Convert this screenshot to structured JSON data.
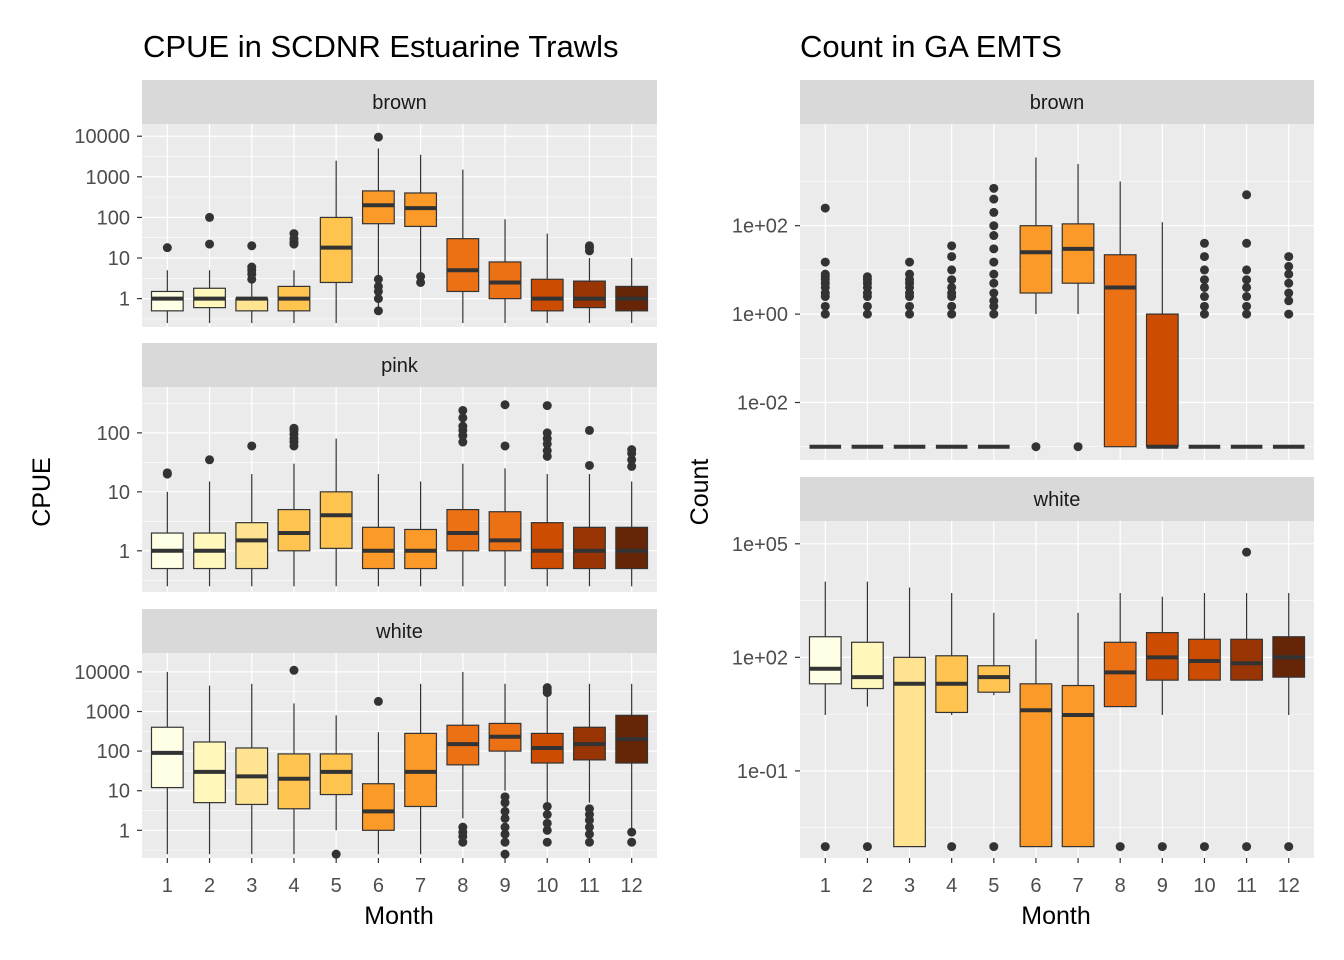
{
  "chart_data": [
    {
      "type": "boxplot",
      "title": "CPUE in SCDNR Estuarine Trawls",
      "xlabel": "Month",
      "ylabel": "CPUE",
      "y_scale": "log10",
      "categories": [
        "1",
        "2",
        "3",
        "4",
        "5",
        "6",
        "7",
        "8",
        "9",
        "10",
        "11",
        "12"
      ],
      "fill_colors": [
        "#FFFFE5",
        "#FFF7BC",
        "#FEE391",
        "#FEC44F",
        "#FEC44F",
        "#FB9A29",
        "#FB9A29",
        "#EC7014",
        "#EC7014",
        "#CC4C02",
        "#993404",
        "#662506"
      ],
      "facets": [
        {
          "label": "brown",
          "ylim": [
            0.2,
            20000
          ],
          "ticks": [
            {
              "v": 1,
              "t": "1"
            },
            {
              "v": 10,
              "t": "10"
            },
            {
              "v": 100,
              "t": "100"
            },
            {
              "v": 1000,
              "t": "1000"
            },
            {
              "v": 10000,
              "t": "10000"
            }
          ],
          "boxes": [
            {
              "min": 0.25,
              "q1": 0.5,
              "med": 1,
              "q3": 1.5,
              "max": 5,
              "out": [
                18
              ]
            },
            {
              "min": 0.25,
              "q1": 0.6,
              "med": 1,
              "q3": 1.8,
              "max": 5,
              "out": [
                22,
                100
              ]
            },
            {
              "min": 0.25,
              "q1": 0.5,
              "med": 1,
              "q3": 1,
              "max": 4,
              "out": [
                3,
                4,
                5,
                6,
                20
              ]
            },
            {
              "min": 0.25,
              "q1": 0.5,
              "med": 1,
              "q3": 2,
              "max": 5,
              "out": [
                22,
                25,
                30,
                40
              ]
            },
            {
              "min": 0.25,
              "q1": 2.5,
              "med": 18,
              "q3": 100,
              "max": 2500,
              "out": []
            },
            {
              "min": 0.5,
              "q1": 70,
              "med": 200,
              "q3": 450,
              "max": 5000,
              "out": [
                0.5,
                1,
                1.5,
                2,
                3,
                9500
              ]
            },
            {
              "min": 2,
              "q1": 60,
              "med": 170,
              "q3": 400,
              "max": 3500,
              "out": [
                2.5,
                3.5
              ]
            },
            {
              "min": 0.25,
              "q1": 1.5,
              "med": 5,
              "q3": 30,
              "max": 1500,
              "out": []
            },
            {
              "min": 0.25,
              "q1": 1,
              "med": 2.5,
              "q3": 8,
              "max": 90,
              "out": []
            },
            {
              "min": 0.25,
              "q1": 0.5,
              "med": 1,
              "q3": 3,
              "max": 40,
              "out": []
            },
            {
              "min": 0.25,
              "q1": 0.6,
              "med": 1,
              "q3": 2.7,
              "max": 10,
              "out": [
                15,
                18,
                20
              ]
            },
            {
              "min": 0.25,
              "q1": 0.5,
              "med": 1,
              "q3": 2,
              "max": 10,
              "out": []
            }
          ]
        },
        {
          "label": "pink",
          "ylim": [
            0.2,
            600
          ],
          "ticks": [
            {
              "v": 1,
              "t": "1"
            },
            {
              "v": 10,
              "t": "10"
            },
            {
              "v": 100,
              "t": "100"
            }
          ],
          "boxes": [
            {
              "min": 0.25,
              "q1": 0.5,
              "med": 1,
              "q3": 2,
              "max": 10,
              "out": [
                20,
                21
              ]
            },
            {
              "min": 0.25,
              "q1": 0.5,
              "med": 1,
              "q3": 2,
              "max": 15,
              "out": [
                35
              ]
            },
            {
              "min": 0.25,
              "q1": 0.5,
              "med": 1.5,
              "q3": 3,
              "max": 20,
              "out": [
                60
              ]
            },
            {
              "min": 0.25,
              "q1": 1,
              "med": 2,
              "q3": 5,
              "max": 30,
              "out": [
                60,
                70,
                80,
                95,
                110,
                120
              ]
            },
            {
              "min": 0.25,
              "q1": 1.1,
              "med": 4,
              "q3": 10,
              "max": 80,
              "out": []
            },
            {
              "min": 0.25,
              "q1": 0.5,
              "med": 1,
              "q3": 2.5,
              "max": 20,
              "out": []
            },
            {
              "min": 0.25,
              "q1": 0.5,
              "med": 1,
              "q3": 2.3,
              "max": 15,
              "out": []
            },
            {
              "min": 0.25,
              "q1": 1,
              "med": 2,
              "q3": 5,
              "max": 30,
              "out": [
                70,
                90,
                110,
                130,
                180,
                240
              ]
            },
            {
              "min": 0.25,
              "q1": 1,
              "med": 1.5,
              "q3": 4.6,
              "max": 25,
              "out": [
                60,
                300
              ]
            },
            {
              "min": 0.25,
              "q1": 0.5,
              "med": 1,
              "q3": 3,
              "max": 20,
              "out": [
                40,
                50,
                65,
                80,
                100,
                290
              ]
            },
            {
              "min": 0.25,
              "q1": 0.5,
              "med": 1,
              "q3": 2.5,
              "max": 20,
              "out": [
                28,
                110
              ]
            },
            {
              "min": 0.25,
              "q1": 0.5,
              "med": 1,
              "q3": 2.5,
              "max": 15,
              "out": [
                27,
                35,
                45,
                52
              ]
            }
          ]
        },
        {
          "label": "white",
          "ylim": [
            0.2,
            30000
          ],
          "ticks": [
            {
              "v": 1,
              "t": "1"
            },
            {
              "v": 10,
              "t": "10"
            },
            {
              "v": 100,
              "t": "100"
            },
            {
              "v": 1000,
              "t": "1000"
            },
            {
              "v": 10000,
              "t": "10000"
            }
          ],
          "boxes": [
            {
              "min": 0.25,
              "q1": 12,
              "med": 90,
              "q3": 400,
              "max": 10000,
              "out": []
            },
            {
              "min": 0.25,
              "q1": 5,
              "med": 30,
              "q3": 170,
              "max": 4500,
              "out": []
            },
            {
              "min": 0.25,
              "q1": 4.5,
              "med": 23,
              "q3": 120,
              "max": 5000,
              "out": []
            },
            {
              "min": 0.25,
              "q1": 3.5,
              "med": 20,
              "q3": 85,
              "max": 1600,
              "out": [
                11000
              ]
            },
            {
              "min": 1,
              "q1": 8,
              "med": 30,
              "q3": 85,
              "max": 800,
              "out": [
                0.25
              ]
            },
            {
              "min": 0.25,
              "q1": 1,
              "med": 3,
              "q3": 15,
              "max": 300,
              "out": [
                1800
              ]
            },
            {
              "min": 0.25,
              "q1": 4,
              "med": 30,
              "q3": 280,
              "max": 5000,
              "out": []
            },
            {
              "min": 2,
              "q1": 45,
              "med": 150,
              "q3": 450,
              "max": 10000,
              "out": [
                0.5,
                0.7,
                0.9,
                1.2
              ]
            },
            {
              "min": 10,
              "q1": 100,
              "med": 230,
              "q3": 500,
              "max": 5000,
              "out": [
                0.25,
                0.5,
                0.8,
                1.2,
                2,
                3,
                5,
                7
              ]
            },
            {
              "min": 5,
              "q1": 50,
              "med": 120,
              "q3": 280,
              "max": 3000,
              "out": [
                0.5,
                1,
                1.5,
                2.5,
                4,
                3000,
                3500,
                4000
              ]
            },
            {
              "min": 5,
              "q1": 60,
              "med": 150,
              "q3": 400,
              "max": 5000,
              "out": [
                0.5,
                0.8,
                1.2,
                1.8,
                2.5,
                3.5
              ]
            },
            {
              "min": 1,
              "q1": 50,
              "med": 200,
              "q3": 800,
              "max": 5000,
              "out": [
                0.5,
                0.9
              ]
            }
          ]
        }
      ]
    },
    {
      "type": "boxplot",
      "title": "Count in GA EMTS",
      "xlabel": "Month",
      "ylabel": "Count",
      "y_scale": "log10",
      "categories": [
        "1",
        "2",
        "3",
        "4",
        "5",
        "6",
        "7",
        "8",
        "9",
        "10",
        "11",
        "12"
      ],
      "fill_colors": [
        "#FFFFE5",
        "#FFF7BC",
        "#FEE391",
        "#FEC44F",
        "#FEC44F",
        "#FB9A29",
        "#FB9A29",
        "#EC7014",
        "#CC4C02",
        "#CC4C02",
        "#993404",
        "#662506"
      ],
      "facets": [
        {
          "label": "brown",
          "ylim": [
            0.0005,
            20000
          ],
          "ticks": [
            {
              "v": 0.01,
              "t": "1e-02"
            },
            {
              "v": 1,
              "t": "1e+00"
            },
            {
              "v": 100,
              "t": "1e+02"
            }
          ],
          "boxes": [
            {
              "min": 0.001,
              "q1": 0.001,
              "med": 0.001,
              "q3": 0.001,
              "max": 0.001,
              "out": [
                1,
                1.5,
                2.5,
                3,
                4,
                5,
                6,
                7,
                8,
                15,
                250
              ]
            },
            {
              "min": 0.001,
              "q1": 0.001,
              "med": 0.001,
              "q3": 0.001,
              "max": 0.001,
              "out": [
                1,
                1.5,
                2.5,
                3,
                4,
                5,
                6,
                7
              ]
            },
            {
              "min": 0.001,
              "q1": 0.001,
              "med": 0.001,
              "q3": 0.001,
              "max": 0.001,
              "out": [
                1,
                1.5,
                2.5,
                3,
                4,
                5,
                6,
                8,
                15
              ]
            },
            {
              "min": 0.001,
              "q1": 0.001,
              "med": 0.001,
              "q3": 0.001,
              "max": 0.001,
              "out": [
                1,
                1.5,
                2.5,
                3,
                4,
                6,
                10,
                20,
                35
              ]
            },
            {
              "min": 0.001,
              "q1": 0.001,
              "med": 0.001,
              "q3": 0.001,
              "max": 0.001,
              "out": [
                1,
                1.5,
                2,
                3,
                5,
                8,
                15,
                30,
                60,
                100,
                200,
                400,
                700
              ]
            },
            {
              "min": 1,
              "q1": 3,
              "med": 25,
              "q3": 100,
              "max": 3500,
              "out": [
                0.001
              ]
            },
            {
              "min": 1,
              "q1": 5,
              "med": 30,
              "q3": 110,
              "max": 2500,
              "out": [
                0.001
              ]
            },
            {
              "min": 0.001,
              "q1": 0.001,
              "med": 4,
              "q3": 22,
              "max": 1000,
              "out": []
            },
            {
              "min": 0.001,
              "q1": 0.001,
              "med": 0.001,
              "q3": 1,
              "max": 120,
              "out": []
            },
            {
              "min": 0.001,
              "q1": 0.001,
              "med": 0.001,
              "q3": 0.001,
              "max": 0.001,
              "out": [
                1,
                1.5,
                2.5,
                4,
                6,
                10,
                20,
                40
              ]
            },
            {
              "min": 0.001,
              "q1": 0.001,
              "med": 0.001,
              "q3": 0.001,
              "max": 0.001,
              "out": [
                1,
                1.5,
                2.5,
                4,
                6,
                10,
                40,
                500
              ]
            },
            {
              "min": 0.001,
              "q1": 0.001,
              "med": 0.001,
              "q3": 0.001,
              "max": 0.001,
              "out": [
                1,
                2,
                3,
                5,
                8,
                12,
                20
              ]
            }
          ]
        },
        {
          "label": "white",
          "ylim": [
            0.0005,
            400000
          ],
          "ticks": [
            {
              "v": 0.1,
              "t": "1e-01"
            },
            {
              "v": 100,
              "t": "1e+02"
            },
            {
              "v": 100000,
              "t": "1e+05"
            }
          ],
          "boxes": [
            {
              "min": 3,
              "q1": 20,
              "med": 50,
              "q3": 350,
              "max": 10000,
              "out": [
                0.001
              ]
            },
            {
              "min": 5,
              "q1": 15,
              "med": 30,
              "q3": 250,
              "max": 10000,
              "out": [
                0.001
              ]
            },
            {
              "min": 0.001,
              "q1": 0.001,
              "med": 20,
              "q3": 100,
              "max": 7000,
              "out": []
            },
            {
              "min": 3,
              "q1": 3.5,
              "med": 20,
              "q3": 110,
              "max": 5000,
              "out": [
                0.001
              ]
            },
            {
              "min": 10,
              "q1": 12,
              "med": 30,
              "q3": 60,
              "max": 1500,
              "out": [
                0.001
              ]
            },
            {
              "min": 0.001,
              "q1": 0.001,
              "med": 4,
              "q3": 20,
              "max": 300,
              "out": []
            },
            {
              "min": 0.001,
              "q1": 0.001,
              "med": 3,
              "q3": 18,
              "max": 1500,
              "out": []
            },
            {
              "min": 5,
              "q1": 5,
              "med": 40,
              "q3": 250,
              "max": 5000,
              "out": [
                0.001
              ]
            },
            {
              "min": 3,
              "q1": 25,
              "med": 100,
              "q3": 450,
              "max": 4000,
              "out": [
                0.001
              ]
            },
            {
              "min": 25,
              "q1": 25,
              "med": 80,
              "q3": 300,
              "max": 5000,
              "out": [
                0.001
              ]
            },
            {
              "min": 25,
              "q1": 25,
              "med": 70,
              "q3": 300,
              "max": 5000,
              "out": [
                0.001,
                60000
              ]
            },
            {
              "min": 3,
              "q1": 30,
              "med": 100,
              "q3": 350,
              "max": 5000,
              "out": [
                0.001
              ]
            }
          ]
        }
      ]
    }
  ]
}
